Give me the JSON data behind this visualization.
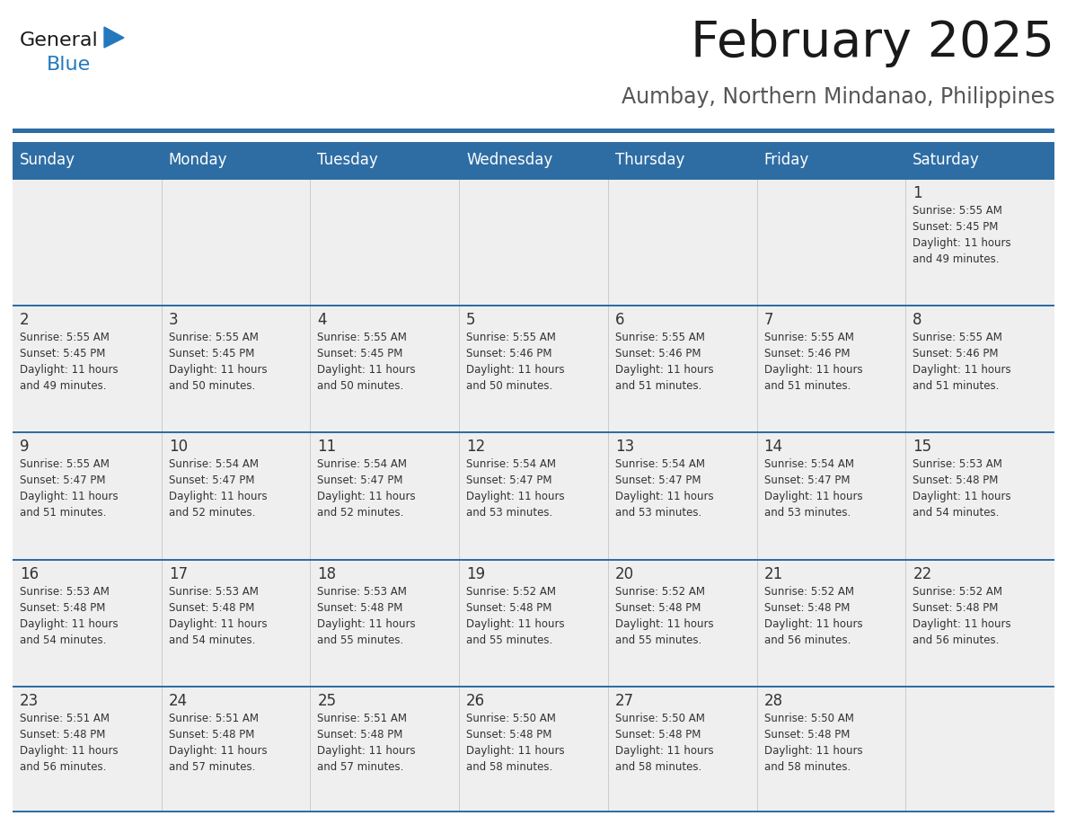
{
  "title": "February 2025",
  "subtitle": "Aumbay, Northern Mindanao, Philippines",
  "header_bg": "#2E6DA4",
  "header_text": "#FFFFFF",
  "cell_bg": "#EFEFEF",
  "cell_bg2": "#FFFFFF",
  "row_sep_color": "#2E6DA4",
  "col_sep_color": "#CCCCCC",
  "text_color": "#333333",
  "days_of_week": [
    "Sunday",
    "Monday",
    "Tuesday",
    "Wednesday",
    "Thursday",
    "Friday",
    "Saturday"
  ],
  "calendar": [
    [
      {
        "day": "",
        "info": ""
      },
      {
        "day": "",
        "info": ""
      },
      {
        "day": "",
        "info": ""
      },
      {
        "day": "",
        "info": ""
      },
      {
        "day": "",
        "info": ""
      },
      {
        "day": "",
        "info": ""
      },
      {
        "day": "1",
        "info": "Sunrise: 5:55 AM\nSunset: 5:45 PM\nDaylight: 11 hours\nand 49 minutes."
      }
    ],
    [
      {
        "day": "2",
        "info": "Sunrise: 5:55 AM\nSunset: 5:45 PM\nDaylight: 11 hours\nand 49 minutes."
      },
      {
        "day": "3",
        "info": "Sunrise: 5:55 AM\nSunset: 5:45 PM\nDaylight: 11 hours\nand 50 minutes."
      },
      {
        "day": "4",
        "info": "Sunrise: 5:55 AM\nSunset: 5:45 PM\nDaylight: 11 hours\nand 50 minutes."
      },
      {
        "day": "5",
        "info": "Sunrise: 5:55 AM\nSunset: 5:46 PM\nDaylight: 11 hours\nand 50 minutes."
      },
      {
        "day": "6",
        "info": "Sunrise: 5:55 AM\nSunset: 5:46 PM\nDaylight: 11 hours\nand 51 minutes."
      },
      {
        "day": "7",
        "info": "Sunrise: 5:55 AM\nSunset: 5:46 PM\nDaylight: 11 hours\nand 51 minutes."
      },
      {
        "day": "8",
        "info": "Sunrise: 5:55 AM\nSunset: 5:46 PM\nDaylight: 11 hours\nand 51 minutes."
      }
    ],
    [
      {
        "day": "9",
        "info": "Sunrise: 5:55 AM\nSunset: 5:47 PM\nDaylight: 11 hours\nand 51 minutes."
      },
      {
        "day": "10",
        "info": "Sunrise: 5:54 AM\nSunset: 5:47 PM\nDaylight: 11 hours\nand 52 minutes."
      },
      {
        "day": "11",
        "info": "Sunrise: 5:54 AM\nSunset: 5:47 PM\nDaylight: 11 hours\nand 52 minutes."
      },
      {
        "day": "12",
        "info": "Sunrise: 5:54 AM\nSunset: 5:47 PM\nDaylight: 11 hours\nand 53 minutes."
      },
      {
        "day": "13",
        "info": "Sunrise: 5:54 AM\nSunset: 5:47 PM\nDaylight: 11 hours\nand 53 minutes."
      },
      {
        "day": "14",
        "info": "Sunrise: 5:54 AM\nSunset: 5:47 PM\nDaylight: 11 hours\nand 53 minutes."
      },
      {
        "day": "15",
        "info": "Sunrise: 5:53 AM\nSunset: 5:48 PM\nDaylight: 11 hours\nand 54 minutes."
      }
    ],
    [
      {
        "day": "16",
        "info": "Sunrise: 5:53 AM\nSunset: 5:48 PM\nDaylight: 11 hours\nand 54 minutes."
      },
      {
        "day": "17",
        "info": "Sunrise: 5:53 AM\nSunset: 5:48 PM\nDaylight: 11 hours\nand 54 minutes."
      },
      {
        "day": "18",
        "info": "Sunrise: 5:53 AM\nSunset: 5:48 PM\nDaylight: 11 hours\nand 55 minutes."
      },
      {
        "day": "19",
        "info": "Sunrise: 5:52 AM\nSunset: 5:48 PM\nDaylight: 11 hours\nand 55 minutes."
      },
      {
        "day": "20",
        "info": "Sunrise: 5:52 AM\nSunset: 5:48 PM\nDaylight: 11 hours\nand 55 minutes."
      },
      {
        "day": "21",
        "info": "Sunrise: 5:52 AM\nSunset: 5:48 PM\nDaylight: 11 hours\nand 56 minutes."
      },
      {
        "day": "22",
        "info": "Sunrise: 5:52 AM\nSunset: 5:48 PM\nDaylight: 11 hours\nand 56 minutes."
      }
    ],
    [
      {
        "day": "23",
        "info": "Sunrise: 5:51 AM\nSunset: 5:48 PM\nDaylight: 11 hours\nand 56 minutes."
      },
      {
        "day": "24",
        "info": "Sunrise: 5:51 AM\nSunset: 5:48 PM\nDaylight: 11 hours\nand 57 minutes."
      },
      {
        "day": "25",
        "info": "Sunrise: 5:51 AM\nSunset: 5:48 PM\nDaylight: 11 hours\nand 57 minutes."
      },
      {
        "day": "26",
        "info": "Sunrise: 5:50 AM\nSunset: 5:48 PM\nDaylight: 11 hours\nand 58 minutes."
      },
      {
        "day": "27",
        "info": "Sunrise: 5:50 AM\nSunset: 5:48 PM\nDaylight: 11 hours\nand 58 minutes."
      },
      {
        "day": "28",
        "info": "Sunrise: 5:50 AM\nSunset: 5:48 PM\nDaylight: 11 hours\nand 58 minutes."
      },
      {
        "day": "",
        "info": ""
      }
    ]
  ],
  "logo_text1": "General",
  "logo_text2": "Blue",
  "logo_color1": "#1a1a1a",
  "logo_color2": "#2479BD",
  "logo_triangle_color": "#2479BD",
  "title_color": "#1a1a1a",
  "subtitle_color": "#555555"
}
